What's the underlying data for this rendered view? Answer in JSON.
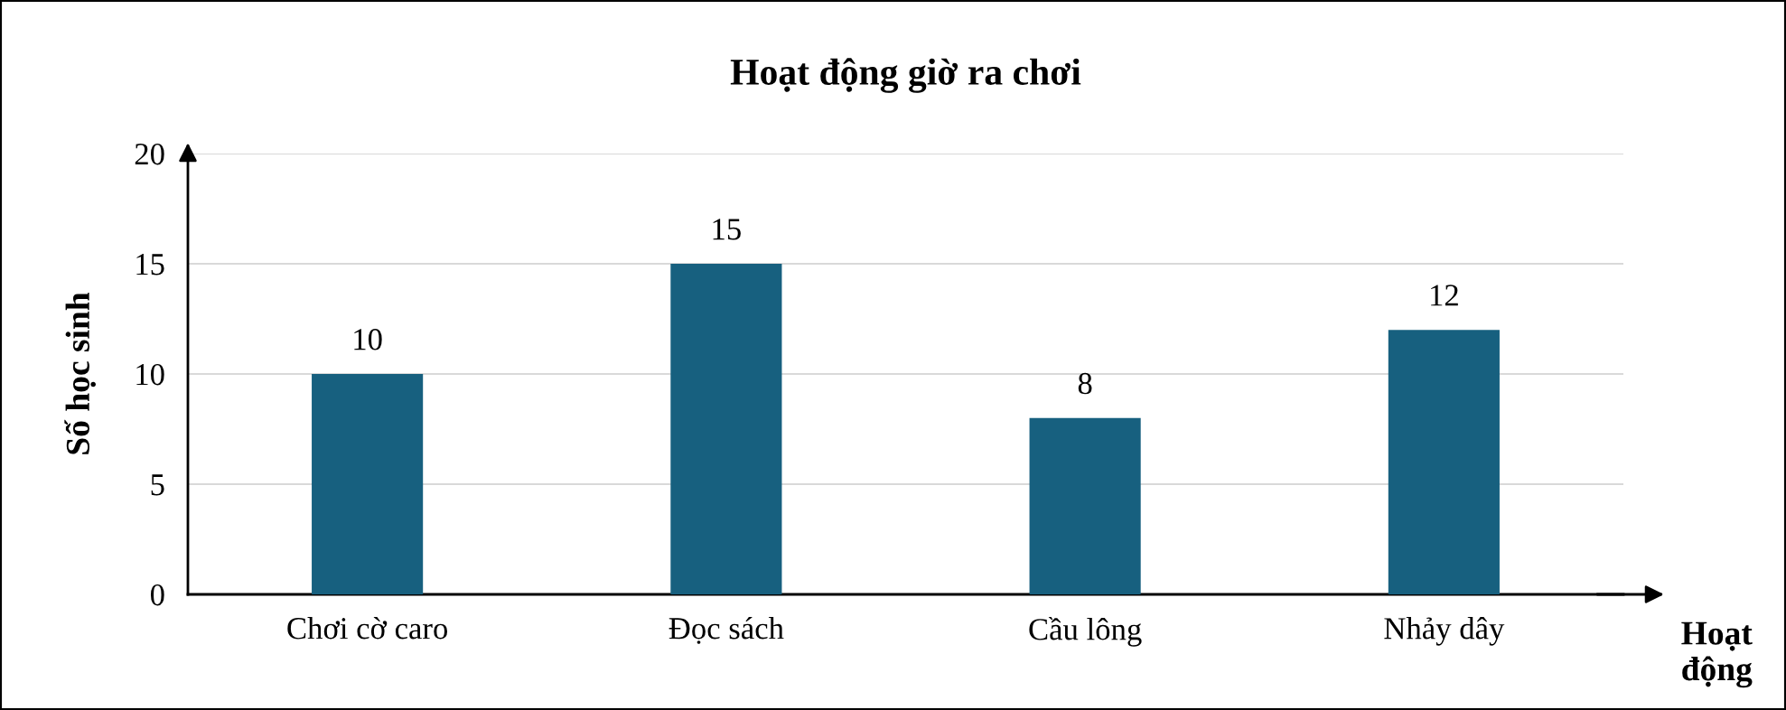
{
  "chart_data": {
    "type": "bar",
    "title": "Hoạt động giờ ra chơi",
    "xlabel": "Hoạt động",
    "ylabel": "Số học sinh",
    "categories": [
      "Chơi cờ caro",
      "Đọc sách",
      "Cầu lông",
      "Nhảy dây"
    ],
    "values": [
      10,
      15,
      8,
      12
    ],
    "color": "#17607f",
    "ylim": [
      0,
      20
    ],
    "yticks": [
      0,
      5,
      10,
      15,
      20
    ],
    "grid": "y",
    "data_labels": true
  }
}
